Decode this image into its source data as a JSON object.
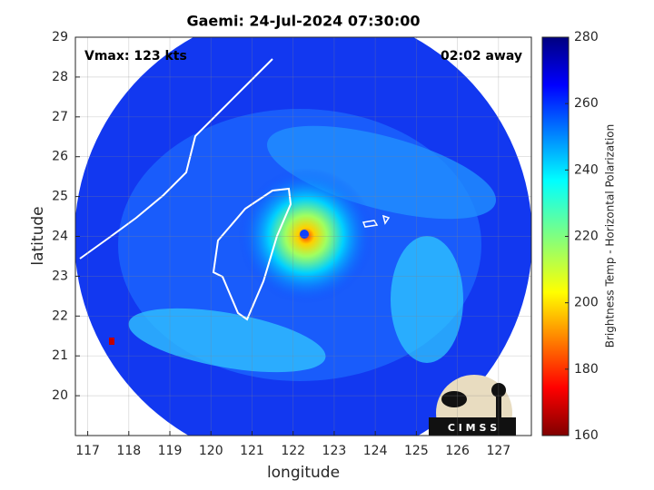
{
  "title": "Gaemi: 24-Jul-2024 07:30:00",
  "annotations": {
    "vmax": "Vmax: 123 kts",
    "time_away": "02:02 away"
  },
  "axes": {
    "xlabel": "longitude",
    "ylabel": "latitude",
    "xlim": [
      116.7,
      127.8
    ],
    "ylim": [
      19,
      29
    ],
    "xticks": [
      117,
      118,
      119,
      120,
      121,
      122,
      123,
      124,
      125,
      126,
      127
    ],
    "yticks": [
      20,
      21,
      22,
      23,
      24,
      25,
      26,
      27,
      28,
      29
    ]
  },
  "colorbar": {
    "label": "Brightness Temp - Horizontal Polarization",
    "lim": [
      160,
      280
    ],
    "ticks": [
      160,
      180,
      200,
      220,
      240,
      260,
      280
    ]
  },
  "logo": "C I M S S"
}
